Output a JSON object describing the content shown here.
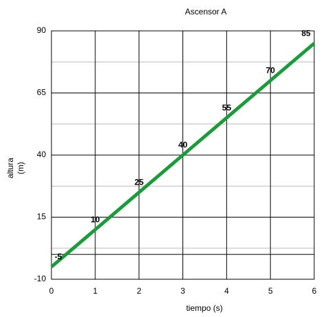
{
  "chart_data": {
    "type": "line",
    "title": "Ascensor A",
    "xlabel": "tiempo (s)",
    "ylabel": [
      "altura",
      "(m)"
    ],
    "x": [
      0,
      1,
      2,
      3,
      4,
      5,
      6
    ],
    "series": [
      {
        "name": "Ascensor A",
        "color": "#1d9a3b",
        "values": [
          -5,
          10,
          25,
          40,
          55,
          70,
          85
        ]
      }
    ],
    "xlim": [
      0,
      6
    ],
    "xticks": [
      0,
      1,
      2,
      3,
      4,
      5,
      6
    ],
    "ylim": [
      -10,
      90
    ],
    "yticks": [
      -10,
      15,
      40,
      65,
      90
    ],
    "minor_yticks": [
      2.5,
      27.5,
      52.5,
      77.5
    ],
    "grid": true,
    "data_labels": true
  }
}
